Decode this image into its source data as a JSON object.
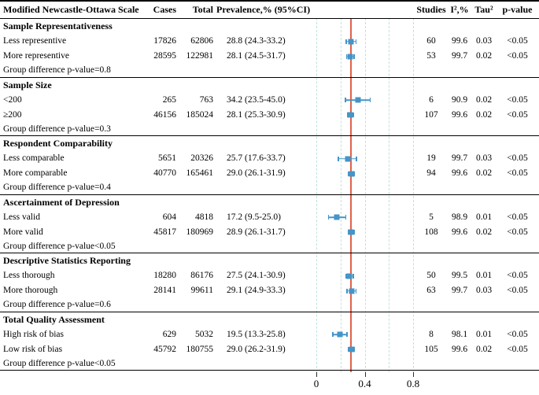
{
  "chart_data": {
    "type": "forest",
    "columns": {
      "label": "Modified Newcastle-Ottawa Scale",
      "cases": "Cases",
      "total": "Total",
      "prevalence": "Prevalence,% (95%CI)",
      "plot": "",
      "studies": "Studies",
      "i2": "I²,%",
      "tau2": "Tau²",
      "pvalue": "p-value"
    },
    "sections": [
      {
        "title": "Sample Representativeness",
        "rows": [
          {
            "label": "Less representive",
            "cases": "17826",
            "total": "62806",
            "prevalence": "28.8 (24.3-33.2)",
            "est": 0.288,
            "lo": 0.243,
            "hi": 0.332,
            "studies": "60",
            "i2": "99.6",
            "tau2": "0.03",
            "p": "<0.05"
          },
          {
            "label": "More representive",
            "cases": "28595",
            "total": "122981",
            "prevalence": "28.1 (24.5-31.7)",
            "est": 0.281,
            "lo": 0.245,
            "hi": 0.317,
            "studies": "53",
            "i2": "99.7",
            "tau2": "0.02",
            "p": "<0.05"
          }
        ],
        "group_note": "Group difference p-value=0.8"
      },
      {
        "title": "Sample Size",
        "rows": [
          {
            "label": "<200",
            "cases": "265",
            "total": "763",
            "prevalence": "34.2 (23.5-45.0)",
            "est": 0.342,
            "lo": 0.235,
            "hi": 0.45,
            "studies": "6",
            "i2": "90.9",
            "tau2": "0.02",
            "p": "<0.05"
          },
          {
            "label": "≥200",
            "cases": "46156",
            "total": "185024",
            "prevalence": "28.1 (25.3-30.9)",
            "est": 0.281,
            "lo": 0.253,
            "hi": 0.309,
            "studies": "107",
            "i2": "99.6",
            "tau2": "0.02",
            "p": "<0.05"
          }
        ],
        "group_note": "Group difference p-value=0.3"
      },
      {
        "title": "Respondent Comparability",
        "rows": [
          {
            "label": "Less comparable",
            "cases": "5651",
            "total": "20326",
            "prevalence": "25.7 (17.6-33.7)",
            "est": 0.257,
            "lo": 0.176,
            "hi": 0.337,
            "studies": "19",
            "i2": "99.7",
            "tau2": "0.03",
            "p": "<0.05"
          },
          {
            "label": "More comparable",
            "cases": "40770",
            "total": "165461",
            "prevalence": "29.0 (26.1-31.9)",
            "est": 0.29,
            "lo": 0.261,
            "hi": 0.319,
            "studies": "94",
            "i2": "99.6",
            "tau2": "0.02",
            "p": "<0.05"
          }
        ],
        "group_note": "Group difference p-value=0.4"
      },
      {
        "title": "Ascertainment of Depression",
        "rows": [
          {
            "label": "Less valid",
            "cases": "604",
            "total": "4818",
            "prevalence": "17.2 (9.5-25.0)",
            "est": 0.172,
            "lo": 0.095,
            "hi": 0.25,
            "studies": "5",
            "i2": "98.9",
            "tau2": "0.01",
            "p": "<0.05"
          },
          {
            "label": "More valid",
            "cases": "45817",
            "total": "180969",
            "prevalence": "28.9 (26.1-31.7)",
            "est": 0.289,
            "lo": 0.261,
            "hi": 0.317,
            "studies": "108",
            "i2": "99.6",
            "tau2": "0.02",
            "p": "<0.05"
          }
        ],
        "group_note": "Group difference p-value<0.05"
      },
      {
        "title": "Descriptive Statistics Reporting",
        "rows": [
          {
            "label": "Less thorough",
            "cases": "18280",
            "total": "86176",
            "prevalence": "27.5 (24.1-30.9)",
            "est": 0.275,
            "lo": 0.241,
            "hi": 0.309,
            "studies": "50",
            "i2": "99.5",
            "tau2": "0.01",
            "p": "<0.05"
          },
          {
            "label": "More thorough",
            "cases": "28141",
            "total": "99611",
            "prevalence": "29.1 (24.9-33.3)",
            "est": 0.291,
            "lo": 0.249,
            "hi": 0.333,
            "studies": "63",
            "i2": "99.7",
            "tau2": "0.03",
            "p": "<0.05"
          }
        ],
        "group_note": "Group difference p-value=0.6"
      },
      {
        "title": "Total Quality Assessment",
        "rows": [
          {
            "label": "High risk of bias",
            "cases": "629",
            "total": "5032",
            "prevalence": "19.5 (13.3-25.8)",
            "est": 0.195,
            "lo": 0.133,
            "hi": 0.258,
            "studies": "8",
            "i2": "98.1",
            "tau2": "0.01",
            "p": "<0.05"
          },
          {
            "label": "Low risk of bias",
            "cases": "45792",
            "total": "180755",
            "prevalence": "29.0 (26.2-31.9)",
            "est": 0.29,
            "lo": 0.262,
            "hi": 0.319,
            "studies": "105",
            "i2": "99.6",
            "tau2": "0.02",
            "p": "<0.05"
          }
        ],
        "group_note": "Group difference p-value<0.05"
      }
    ],
    "axis": {
      "tick_values": [
        0,
        0.4,
        0.8
      ],
      "tick_labels": [
        "0",
        "0.4",
        "0.8"
      ],
      "gridline_values": [
        0,
        0.2,
        0.4,
        0.6,
        0.8
      ],
      "ref_line_value": 0.282,
      "range": [
        0,
        0.82
      ]
    },
    "colors": {
      "marker": "#4495c8",
      "ref_line": "#e0614c",
      "gridline": "#bfe3dd"
    }
  }
}
